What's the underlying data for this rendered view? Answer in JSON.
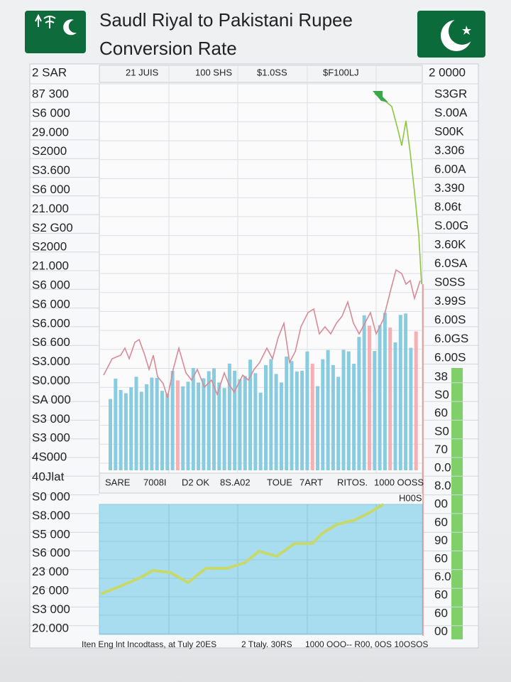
{
  "header": {
    "title_line_1": "Saudl Riyal to Pakistani Rupee",
    "title_line_2": "Conversion Rate"
  },
  "top_row": {
    "left": "2 SAR",
    "labels": [
      "21 JUIS",
      "100 SHS",
      "$1.0SS",
      "$F100LJ"
    ],
    "right": "2 0000"
  },
  "left_axis": {
    "upper": [
      "87 300",
      "S6 000",
      "29.000",
      "S2000",
      "S3.600",
      "S6 000",
      "21.000",
      "S2 G00",
      "S2000",
      "21.000",
      "S6 000",
      "S6 000",
      "S6.000",
      "S6 600",
      "S3.000",
      "S0.000",
      "SA 000",
      "S3 000",
      "S3 000",
      "4S000"
    ],
    "divider": "40Jlat",
    "lower": [
      "S0 000",
      "S8.000",
      "S5 000",
      "S6 000",
      "23 000",
      "26 000",
      "S3 000",
      "20.000"
    ]
  },
  "right_axis": {
    "upper": [
      "S3GR",
      "S.00A",
      "S00K",
      "3.306",
      "6.00A",
      "3.390",
      "8.06t",
      "S.00G",
      "3.60K",
      "6.0SA",
      "S0SS",
      "3.99S",
      "6.00S",
      "6.0GS",
      "6.00S"
    ],
    "lower": [
      "38",
      "S0",
      "60",
      "S0",
      "70",
      "0.0",
      "8.0",
      "00",
      "60",
      "90",
      "60",
      "6.0",
      "60",
      "60",
      "00"
    ]
  },
  "middle_row": {
    "labels": [
      "SARE",
      "7008I",
      "D2 OK",
      "8S.A02",
      "TOUE",
      "7ART",
      "RITOS.",
      "1000 OOSS"
    ],
    "note": "H00S"
  },
  "footer": [
    "Iten Eng lnt Incodtass, at Tuly 20ES",
    "2 Ttaly. 30RS",
    "1000 OOO-- R00, 0OS 10OSOS"
  ]
}
